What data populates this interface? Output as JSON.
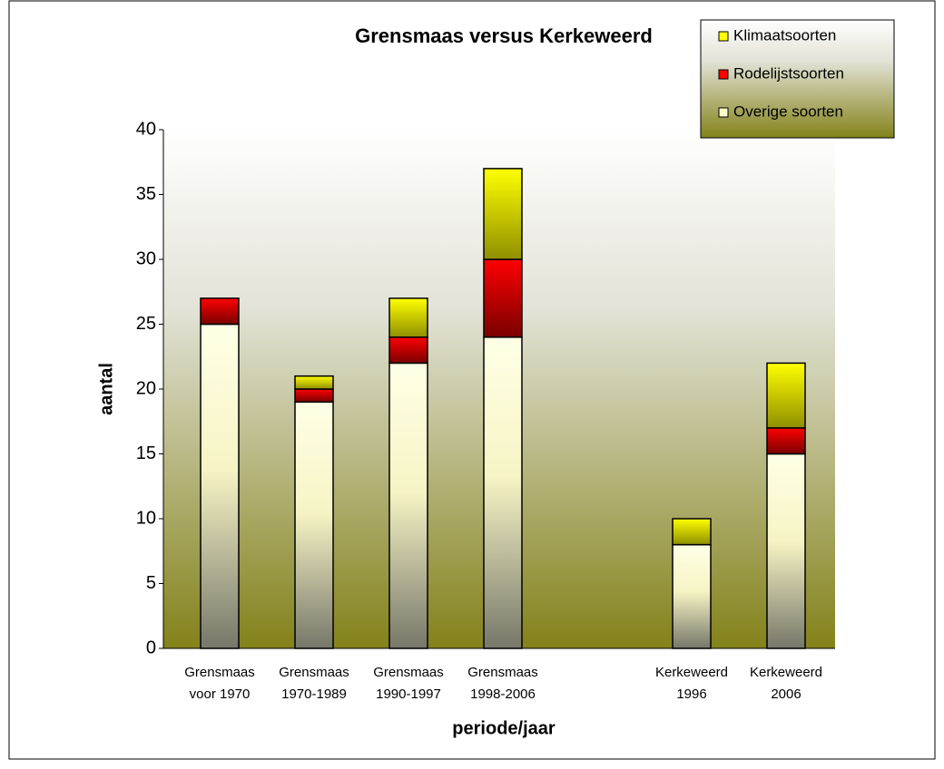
{
  "chart_data": {
    "type": "stacked_bar",
    "title": "Grensmaas versus Kerkeweerd",
    "x_label": "periode/jaar",
    "y_label": "aantal",
    "categories": [
      "Grensmaas\nvoor 1970",
      "Grensmaas\n1970-1989",
      "Grensmaas\n1990-1997",
      "Grensmaas\n1998-2006",
      null,
      "Kerkeweerd\n1996",
      "Kerkeweerd\n2006"
    ],
    "series": [
      {
        "name": "Overige soorten",
        "color": "#ffffcc",
        "values": [
          25,
          19,
          22,
          24,
          null,
          8,
          15
        ]
      },
      {
        "name": "Rodelijstsoorten",
        "color": "#ff0000",
        "values": [
          2,
          1,
          2,
          6,
          null,
          0,
          2
        ]
      },
      {
        "name": "Klimaatsoorten",
        "color": "#ffff00",
        "values": [
          0,
          1,
          3,
          7,
          null,
          2,
          5
        ]
      }
    ],
    "ylim": [
      0,
      40
    ],
    "yticks": [
      0,
      5,
      10,
      15,
      20,
      25,
      30,
      35,
      40
    ],
    "legend": "upper right"
  }
}
